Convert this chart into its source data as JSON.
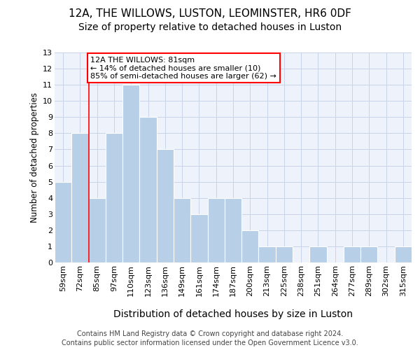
{
  "title_line1": "12A, THE WILLOWS, LUSTON, LEOMINSTER, HR6 0DF",
  "title_line2": "Size of property relative to detached houses in Luston",
  "xlabel": "Distribution of detached houses by size in Luston",
  "ylabel": "Number of detached properties",
  "footer_line1": "Contains HM Land Registry data © Crown copyright and database right 2024.",
  "footer_line2": "Contains public sector information licensed under the Open Government Licence v3.0.",
  "annotation_line1": "12A THE WILLOWS: 81sqm",
  "annotation_line2": "← 14% of detached houses are smaller (10)",
  "annotation_line3": "85% of semi-detached houses are larger (62) →",
  "categories": [
    "59sqm",
    "72sqm",
    "85sqm",
    "97sqm",
    "110sqm",
    "123sqm",
    "136sqm",
    "149sqm",
    "161sqm",
    "174sqm",
    "187sqm",
    "200sqm",
    "213sqm",
    "225sqm",
    "238sqm",
    "251sqm",
    "264sqm",
    "277sqm",
    "289sqm",
    "302sqm",
    "315sqm"
  ],
  "values": [
    5,
    8,
    4,
    8,
    11,
    9,
    7,
    4,
    3,
    4,
    4,
    2,
    1,
    1,
    0,
    1,
    0,
    1,
    1,
    0,
    1
  ],
  "bar_color": "#b8cfe8",
  "grid_color": "#c8d4e8",
  "background_color": "#ffffff",
  "axes_background": "#eef2fa",
  "red_line_index": 2,
  "ylim": [
    0,
    13
  ],
  "yticks": [
    0,
    1,
    2,
    3,
    4,
    5,
    6,
    7,
    8,
    9,
    10,
    11,
    12,
    13
  ],
  "title1_fontsize": 11,
  "title2_fontsize": 10,
  "xlabel_fontsize": 10,
  "ylabel_fontsize": 8.5,
  "tick_fontsize": 8,
  "footer_fontsize": 7,
  "ann_fontsize": 8
}
